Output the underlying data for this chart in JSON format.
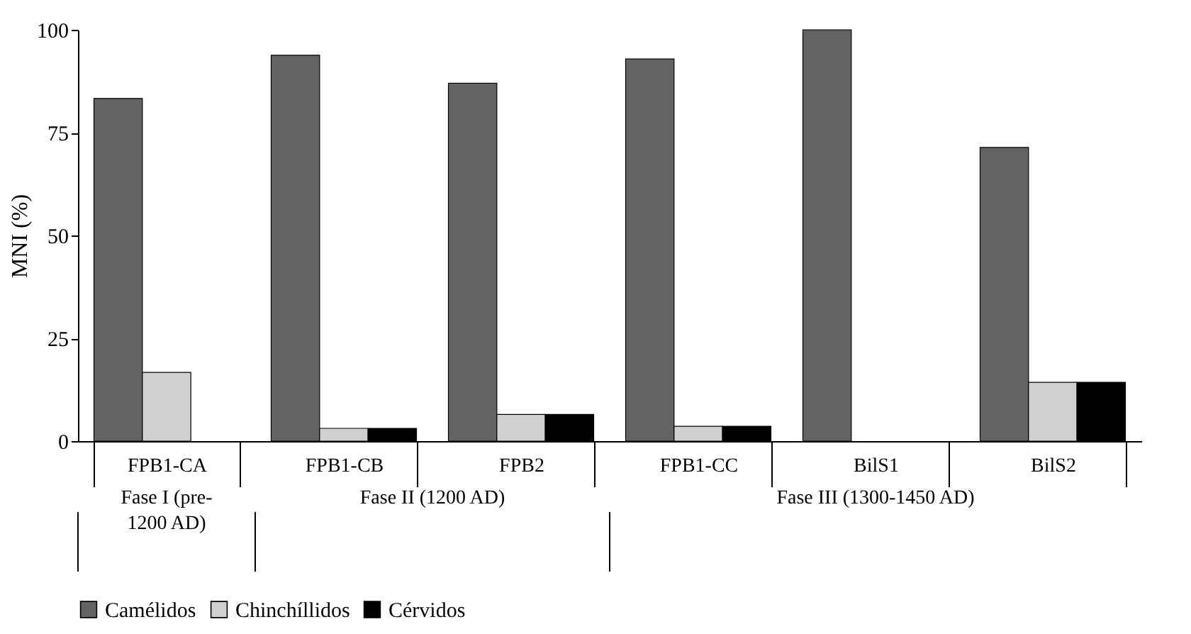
{
  "chart_data": {
    "type": "bar",
    "ylabel": "MNI (%)",
    "categories": [
      "FPB1-CA",
      "FPB1-CB",
      "FPB2",
      "FPB1-CC",
      "BilS1",
      "BilS2"
    ],
    "series": [
      {
        "name": "Camélidos",
        "color": "#636363",
        "values": [
          83.3,
          93.8,
          87,
          92.9,
          100,
          71.4
        ]
      },
      {
        "name": "Chinchíllidos",
        "color": "#d0d0d0",
        "values": [
          16.7,
          3.1,
          6.5,
          3.6,
          null,
          14.3
        ]
      },
      {
        "name": "Cérvidos",
        "color": "#000000",
        "values": [
          null,
          3.1,
          6.5,
          3.6,
          null,
          14.3
        ]
      }
    ],
    "ylim": [
      0,
      100
    ],
    "yticks": [
      0,
      25,
      50,
      75,
      100
    ],
    "grid": false,
    "legend": "bottom",
    "annotations": [
      "Fase I (pre-1200 AD)",
      "Fase II (1200 AD)",
      "Fase III (1300-1450 AD)"
    ]
  }
}
